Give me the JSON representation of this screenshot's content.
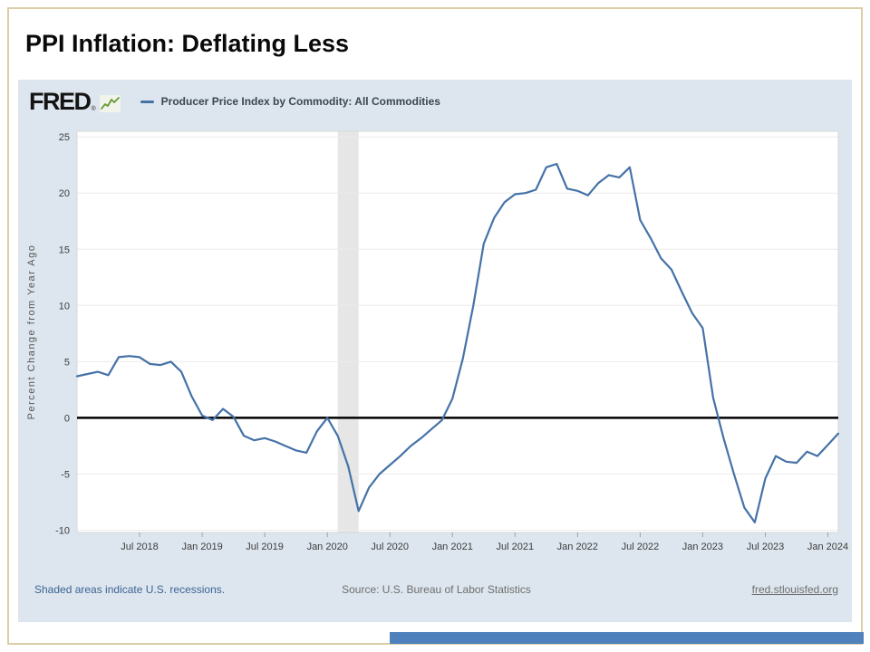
{
  "slide": {
    "title": "PPI Inflation: Deflating Less"
  },
  "chart_header": {
    "brand": "FRED",
    "brand_mark": "®",
    "legend_label": "Producer Price Index by Commodity: All Commodities"
  },
  "footer": {
    "recession_note": "Shaded areas indicate U.S. recessions.",
    "source": "Source: U.S. Bureau of Labor Statistics",
    "site": "fred.stlouisfed.org"
  },
  "colors": {
    "line": "#4572a7",
    "chart_bg": "#dde6ee",
    "plot_bg": "#ffffff",
    "recession_band": "#e6e6e6",
    "zero_line": "#000000",
    "gridline": "#ececec",
    "tick_text": "#3d3d3d",
    "axis_title_text": "#555555",
    "footer_link": "#3b6394",
    "footer_text": "#6e6e6e",
    "accent_bar": "#4f81bd",
    "slide_border": "#dbcda6",
    "spark_green": "#669933"
  },
  "chart_data": {
    "type": "line",
    "title": "Producer Price Index by Commodity: All Commodities",
    "xlabel": "",
    "ylabel": "Percent Change from Year Ago",
    "frequency": "monthly",
    "x_start": "2018-01",
    "x_end": "2024-02",
    "ylim": [
      -10.2,
      25.5
    ],
    "y_ticks": [
      25,
      20,
      15,
      10,
      5,
      0,
      -5,
      -10
    ],
    "x_tick_labels": [
      "Jul 2018",
      "Jan 2019",
      "Jul 2019",
      "Jan 2020",
      "Jul 2020",
      "Jan 2021",
      "Jul 2021",
      "Jan 2022",
      "Jul 2022",
      "Jan 2023",
      "Jul 2023",
      "Jan 2024"
    ],
    "x_tick_month_index": [
      6,
      12,
      18,
      24,
      30,
      36,
      42,
      48,
      54,
      60,
      66,
      72
    ],
    "grid": "horizontal",
    "zero_line": true,
    "legend_position": "top-left",
    "recession_band": {
      "start": "2020-02",
      "end": "2020-04"
    },
    "recession_band_month_index": [
      25,
      27
    ],
    "values": [
      3.7,
      3.9,
      4.1,
      3.8,
      5.4,
      5.5,
      5.4,
      4.8,
      4.7,
      5.0,
      4.1,
      1.9,
      0.2,
      -0.2,
      0.8,
      0.1,
      -1.6,
      -2.0,
      -1.8,
      -2.1,
      -2.5,
      -2.9,
      -3.1,
      -1.2,
      0.0,
      -1.6,
      -4.3,
      -8.3,
      -6.2,
      -5.0,
      -4.2,
      -3.4,
      -2.5,
      -1.8,
      -1.0,
      -0.2,
      1.7,
      5.3,
      10.0,
      15.5,
      17.8,
      19.2,
      19.9,
      20.0,
      20.3,
      22.3,
      22.6,
      20.4,
      20.2,
      19.8,
      20.9,
      21.6,
      21.4,
      22.3,
      17.6,
      16.0,
      14.2,
      13.2,
      11.2,
      9.3,
      8.0,
      1.8,
      -1.8,
      -5.0,
      -8.0,
      -9.3,
      -5.4,
      -3.4,
      -3.9,
      -4.0,
      -3.0,
      -3.4,
      -2.4,
      -1.4
    ]
  }
}
